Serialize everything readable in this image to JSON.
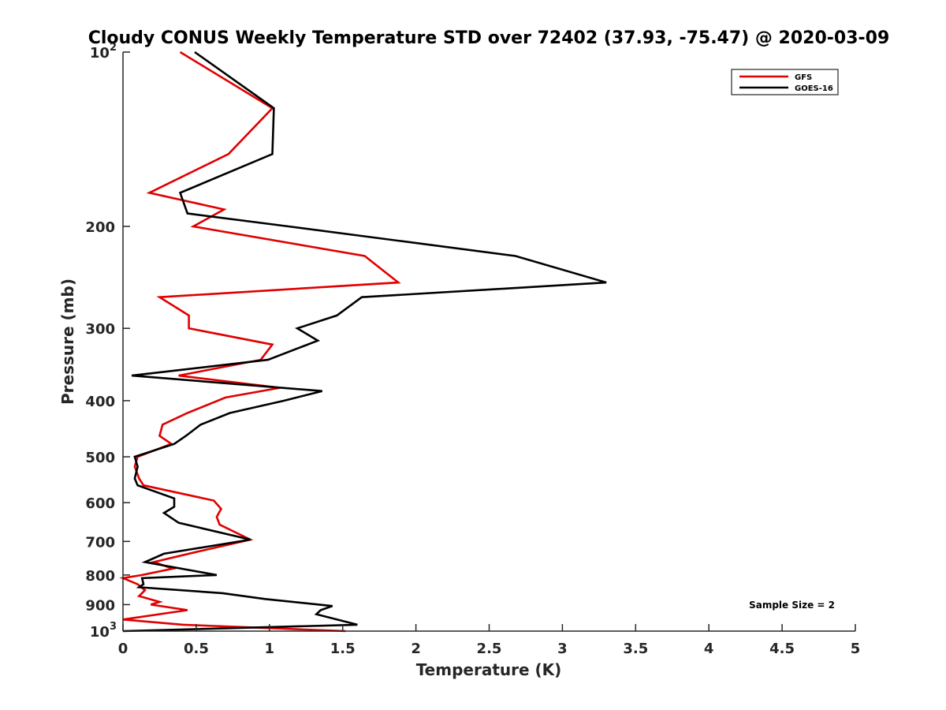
{
  "chart_data": {
    "type": "line",
    "title": "Cloudy CONUS Weekly Temperature STD over 72402 (37.93, -75.47) @ 2020-03-09",
    "xlabel": "Temperature (K)",
    "ylabel": "Pressure (mb)",
    "xlim": [
      0,
      5
    ],
    "ylim": [
      100,
      1000
    ],
    "y_scale": "log",
    "y_reversed": true,
    "grid": false,
    "legend_position": "top-right",
    "x_ticks": [
      "0",
      "0.5",
      "1",
      "1.5",
      "2",
      "2.5",
      "3",
      "3.5",
      "4",
      "4.5",
      "5"
    ],
    "x_tick_values": [
      0,
      0.5,
      1,
      1.5,
      2,
      2.5,
      3,
      3.5,
      4,
      4.5,
      5
    ],
    "y_ticks": [
      {
        "value": 100,
        "base": "10",
        "exp": "2"
      },
      {
        "value": 200,
        "label": "200"
      },
      {
        "value": 300,
        "label": "300"
      },
      {
        "value": 400,
        "label": "400"
      },
      {
        "value": 500,
        "label": "500"
      },
      {
        "value": 600,
        "label": "600"
      },
      {
        "value": 700,
        "label": "700"
      },
      {
        "value": 800,
        "label": "800"
      },
      {
        "value": 900,
        "label": "900"
      },
      {
        "value": 1000,
        "base": "10",
        "exp": "3"
      }
    ],
    "annotation": "Sample Size = 2",
    "series": [
      {
        "name": "GFS",
        "color": "#e00000",
        "points": [
          [
            0.39,
            100
          ],
          [
            1.02,
            125
          ],
          [
            0.72,
            150
          ],
          [
            0.18,
            175
          ],
          [
            0.69,
            187
          ],
          [
            0.48,
            200
          ],
          [
            1.65,
            225
          ],
          [
            1.88,
            250
          ],
          [
            0.25,
            265
          ],
          [
            0.45,
            285
          ],
          [
            0.45,
            300
          ],
          [
            1.02,
            320
          ],
          [
            0.94,
            340
          ],
          [
            0.38,
            362
          ],
          [
            1.07,
            380
          ],
          [
            0.7,
            395
          ],
          [
            0.44,
            420
          ],
          [
            0.27,
            440
          ],
          [
            0.25,
            460
          ],
          [
            0.33,
            475
          ],
          [
            0.1,
            500
          ],
          [
            0.08,
            520
          ],
          [
            0.11,
            545
          ],
          [
            0.14,
            560
          ],
          [
            0.62,
            595
          ],
          [
            0.67,
            615
          ],
          [
            0.64,
            635
          ],
          [
            0.66,
            655
          ],
          [
            0.87,
            695
          ],
          [
            0.5,
            730
          ],
          [
            0.21,
            760
          ],
          [
            0.34,
            780
          ],
          [
            0.13,
            800
          ],
          [
            0.0,
            810
          ],
          [
            0.1,
            830
          ],
          [
            0.15,
            850
          ],
          [
            0.11,
            870
          ],
          [
            0.25,
            890
          ],
          [
            0.19,
            900
          ],
          [
            0.44,
            920
          ],
          [
            0.0,
            955
          ],
          [
            0.41,
            975
          ],
          [
            1.52,
            1000
          ]
        ]
      },
      {
        "name": "GOES-16",
        "color": "#000000",
        "points": [
          [
            0.49,
            100
          ],
          [
            1.03,
            125
          ],
          [
            1.02,
            150
          ],
          [
            0.39,
            175
          ],
          [
            0.44,
            190
          ],
          [
            1.13,
            200
          ],
          [
            2.68,
            225
          ],
          [
            3.3,
            250
          ],
          [
            1.63,
            265
          ],
          [
            1.46,
            285
          ],
          [
            1.19,
            300
          ],
          [
            1.33,
            315
          ],
          [
            0.99,
            340
          ],
          [
            0.06,
            362
          ],
          [
            1.36,
            385
          ],
          [
            1.1,
            400
          ],
          [
            0.73,
            420
          ],
          [
            0.53,
            440
          ],
          [
            0.43,
            460
          ],
          [
            0.35,
            475
          ],
          [
            0.08,
            500
          ],
          [
            0.1,
            520
          ],
          [
            0.08,
            545
          ],
          [
            0.1,
            560
          ],
          [
            0.35,
            590
          ],
          [
            0.35,
            610
          ],
          [
            0.28,
            625
          ],
          [
            0.38,
            650
          ],
          [
            0.87,
            695
          ],
          [
            0.28,
            735
          ],
          [
            0.15,
            760
          ],
          [
            0.64,
            800
          ],
          [
            0.13,
            810
          ],
          [
            0.14,
            830
          ],
          [
            0.11,
            840
          ],
          [
            0.68,
            860
          ],
          [
            0.97,
            880
          ],
          [
            1.43,
            905
          ],
          [
            1.35,
            920
          ],
          [
            1.32,
            935
          ],
          [
            1.6,
            975
          ],
          [
            0.0,
            1000
          ]
        ]
      }
    ]
  }
}
